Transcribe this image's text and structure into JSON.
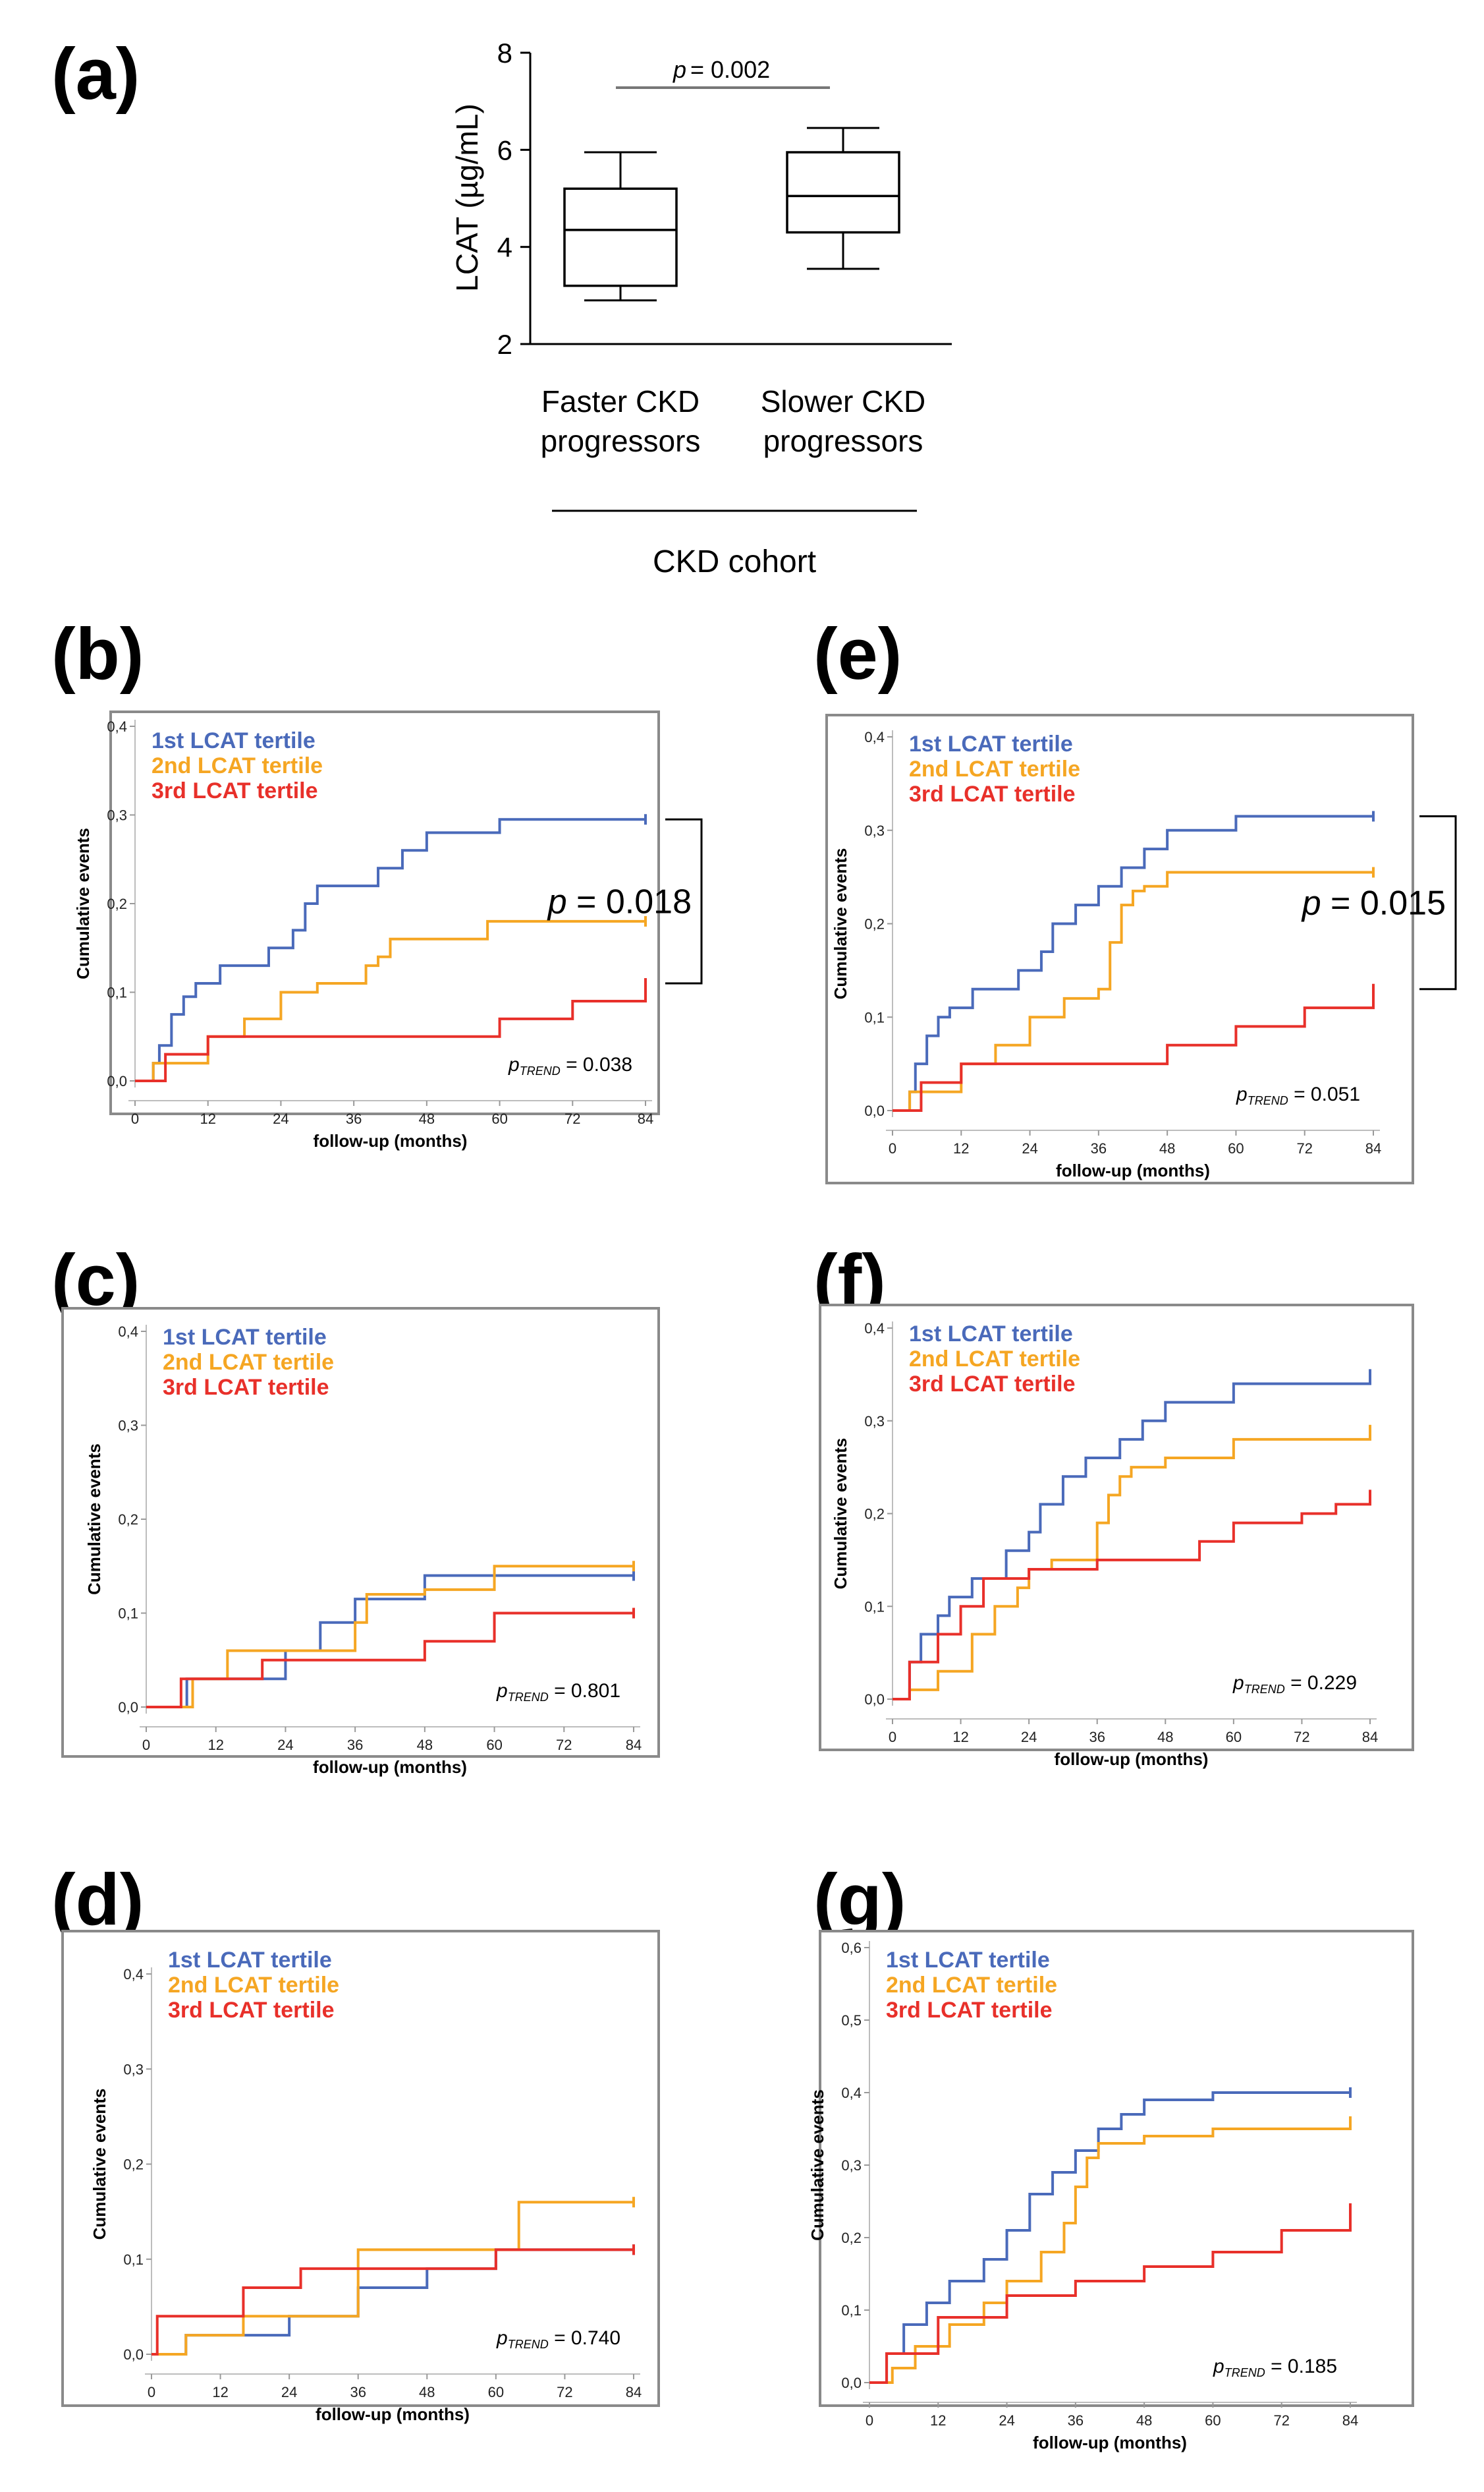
{
  "figure_colors": {
    "tertile_1": "#4a6aba",
    "tertile_2": "#f5a623",
    "tertile_3": "#e8302a"
  },
  "legend_labels": [
    "1st LCAT tertile",
    "2nd LCAT tertile",
    "3rd LCAT tertile"
  ],
  "chart_data": [
    {
      "id": "a",
      "type": "boxplot",
      "panel_label": "(a)",
      "ylabel": "LCAT (µg/mL)",
      "ylim": [
        2,
        8
      ],
      "yticks": [
        "2",
        "4",
        "6",
        "8"
      ],
      "categories": [
        "Faster CKD progressors",
        "Slower CKD progressors"
      ],
      "category_lines": [
        [
          "Faster CKD",
          "progressors"
        ],
        [
          "Slower CKD",
          "progressors"
        ]
      ],
      "boxes": [
        {
          "min": 2.9,
          "q1": 3.2,
          "median": 4.35,
          "q3": 5.2,
          "max": 5.95
        },
        {
          "min": 3.55,
          "q1": 4.3,
          "median": 5.05,
          "q3": 5.95,
          "max": 6.45
        }
      ],
      "comparison": {
        "p_label": "p",
        "p_value": "= 0.002"
      },
      "group_label": "CKD cohort"
    },
    {
      "id": "b",
      "type": "line",
      "panel_label": "(b)",
      "ylabel": "Cumulative events",
      "xlabel": "follow-up (months)",
      "xlim": [
        0,
        84
      ],
      "ylim": [
        0,
        0.4
      ],
      "xticks": [
        "0",
        "12",
        "24",
        "36",
        "48",
        "60",
        "72",
        "84"
      ],
      "yticks": [
        "0,0",
        "0,1",
        "0,2",
        "0,3",
        "0,4"
      ],
      "p_trend": "= 0.038",
      "p_bracket": "p = 0.018",
      "series": [
        {
          "name": "1st LCAT tertile",
          "x": [
            0,
            3,
            4,
            6,
            8,
            10,
            14,
            22,
            26,
            28,
            30,
            32,
            40,
            44,
            48,
            60,
            84
          ],
          "y": [
            0,
            0.02,
            0.04,
            0.075,
            0.095,
            0.11,
            0.13,
            0.15,
            0.17,
            0.2,
            0.22,
            0.22,
            0.24,
            0.26,
            0.28,
            0.295,
            0.295
          ]
        },
        {
          "name": "2nd LCAT tertile",
          "x": [
            0,
            3,
            12,
            18,
            24,
            30,
            38,
            40,
            42,
            44,
            58,
            84
          ],
          "y": [
            0,
            0.02,
            0.05,
            0.07,
            0.1,
            0.11,
            0.13,
            0.14,
            0.16,
            0.16,
            0.18,
            0.18
          ]
        },
        {
          "name": "3rd LCAT tertile",
          "x": [
            0,
            5,
            12,
            16,
            24,
            36,
            48,
            60,
            72,
            84
          ],
          "y": [
            0,
            0.03,
            0.05,
            0.05,
            0.05,
            0.05,
            0.05,
            0.07,
            0.09,
            0.11
          ]
        }
      ]
    },
    {
      "id": "e",
      "type": "line",
      "panel_label": "(e)",
      "ylabel": "Cumulative events",
      "xlabel": "follow-up (months)",
      "xlim": [
        0,
        84
      ],
      "ylim": [
        0,
        0.4
      ],
      "xticks": [
        "0",
        "12",
        "24",
        "36",
        "48",
        "60",
        "72",
        "84"
      ],
      "yticks": [
        "0,0",
        "0,1",
        "0,2",
        "0,3",
        "0,4"
      ],
      "p_trend": "= 0.051",
      "p_bracket": "p = 0.015",
      "series": [
        {
          "name": "1st LCAT tertile",
          "x": [
            0,
            3,
            4,
            6,
            8,
            10,
            14,
            22,
            26,
            28,
            32,
            36,
            40,
            44,
            48,
            60,
            84
          ],
          "y": [
            0,
            0.02,
            0.05,
            0.08,
            0.1,
            0.11,
            0.13,
            0.15,
            0.17,
            0.2,
            0.22,
            0.24,
            0.26,
            0.28,
            0.3,
            0.315,
            0.315
          ]
        },
        {
          "name": "2nd LCAT tertile",
          "x": [
            0,
            3,
            12,
            18,
            24,
            30,
            36,
            38,
            40,
            42,
            44,
            48,
            84
          ],
          "y": [
            0,
            0.02,
            0.05,
            0.07,
            0.1,
            0.12,
            0.13,
            0.18,
            0.22,
            0.235,
            0.24,
            0.255,
            0.255
          ]
        },
        {
          "name": "3rd LCAT tertile",
          "x": [
            0,
            5,
            12,
            16,
            24,
            36,
            48,
            60,
            72,
            84
          ],
          "y": [
            0,
            0.03,
            0.05,
            0.05,
            0.05,
            0.05,
            0.07,
            0.09,
            0.11,
            0.13
          ]
        }
      ]
    },
    {
      "id": "c",
      "type": "line",
      "panel_label": "(c)",
      "ylabel": "Cumulative events",
      "xlabel": "follow-up (months)",
      "xlim": [
        0,
        84
      ],
      "ylim": [
        0,
        0.4
      ],
      "xticks": [
        "0",
        "12",
        "24",
        "36",
        "48",
        "60",
        "72",
        "84"
      ],
      "yticks": [
        "0,0",
        "0,1",
        "0,2",
        "0,3",
        "0,4"
      ],
      "p_trend": "= 0.801",
      "series": [
        {
          "name": "1st LCAT tertile",
          "x": [
            0,
            7,
            12,
            24,
            30,
            36,
            48,
            84
          ],
          "y": [
            0,
            0.03,
            0.03,
            0.06,
            0.09,
            0.115,
            0.14,
            0.14
          ]
        },
        {
          "name": "2nd LCAT tertile",
          "x": [
            0,
            8,
            14,
            24,
            36,
            38,
            48,
            60,
            84
          ],
          "y": [
            0,
            0.03,
            0.06,
            0.06,
            0.09,
            0.12,
            0.125,
            0.15,
            0.15
          ]
        },
        {
          "name": "3rd LCAT tertile",
          "x": [
            0,
            6,
            12,
            20,
            36,
            48,
            60,
            84
          ],
          "y": [
            0,
            0.03,
            0.03,
            0.05,
            0.05,
            0.07,
            0.1,
            0.1
          ]
        }
      ]
    },
    {
      "id": "f",
      "type": "line",
      "panel_label": "(f)",
      "ylabel": "Cumulative events",
      "xlabel": "follow-up (months)",
      "xlim": [
        0,
        84
      ],
      "ylim": [
        0,
        0.4
      ],
      "xticks": [
        "0",
        "12",
        "24",
        "36",
        "48",
        "60",
        "72",
        "84"
      ],
      "yticks": [
        "0,0",
        "0,1",
        "0,2",
        "0,3",
        "0,4"
      ],
      "p_trend": "= 0.229",
      "series": [
        {
          "name": "1st LCAT tertile",
          "x": [
            0,
            3,
            5,
            8,
            10,
            14,
            20,
            24,
            26,
            30,
            34,
            40,
            44,
            48,
            60,
            84
          ],
          "y": [
            0,
            0.04,
            0.07,
            0.09,
            0.11,
            0.13,
            0.16,
            0.18,
            0.21,
            0.24,
            0.26,
            0.28,
            0.3,
            0.32,
            0.34,
            0.35
          ]
        },
        {
          "name": "2nd LCAT tertile",
          "x": [
            0,
            3,
            8,
            14,
            18,
            22,
            24,
            28,
            36,
            38,
            40,
            42,
            48,
            60,
            84
          ],
          "y": [
            0,
            0.01,
            0.03,
            0.07,
            0.1,
            0.12,
            0.14,
            0.15,
            0.19,
            0.22,
            0.24,
            0.25,
            0.26,
            0.28,
            0.29
          ]
        },
        {
          "name": "3rd LCAT tertile",
          "x": [
            0,
            3,
            8,
            12,
            16,
            24,
            36,
            48,
            54,
            60,
            72,
            78,
            84
          ],
          "y": [
            0,
            0.04,
            0.07,
            0.1,
            0.13,
            0.14,
            0.15,
            0.15,
            0.17,
            0.19,
            0.2,
            0.21,
            0.22
          ]
        }
      ]
    },
    {
      "id": "d",
      "type": "line",
      "panel_label": "(d)",
      "ylabel": "Cumulative events",
      "xlabel": "follow-up (months)",
      "xlim": [
        0,
        84
      ],
      "ylim": [
        0,
        0.4
      ],
      "xticks": [
        "0",
        "12",
        "24",
        "36",
        "48",
        "60",
        "72",
        "84"
      ],
      "yticks": [
        "0,0",
        "0,1",
        "0,2",
        "0,3",
        "0,4"
      ],
      "p_trend": "= 0.740",
      "series": [
        {
          "name": "1st LCAT tertile",
          "x": [
            0,
            6,
            12,
            24,
            36,
            48,
            60,
            84
          ],
          "y": [
            0,
            0.02,
            0.02,
            0.04,
            0.07,
            0.09,
            0.11,
            0.11
          ]
        },
        {
          "name": "2nd LCAT tertile",
          "x": [
            0,
            6,
            16,
            24,
            36,
            48,
            60,
            64,
            84
          ],
          "y": [
            0,
            0.02,
            0.04,
            0.04,
            0.11,
            0.11,
            0.11,
            0.16,
            0.16
          ]
        },
        {
          "name": "3rd LCAT tertile",
          "x": [
            0,
            1,
            16,
            26,
            36,
            48,
            60,
            84
          ],
          "y": [
            0,
            0.04,
            0.07,
            0.09,
            0.09,
            0.09,
            0.11,
            0.11
          ]
        }
      ]
    },
    {
      "id": "g",
      "type": "line",
      "panel_label": "(g)",
      "ylabel": "Cumulative events",
      "xlabel": "follow-up (months)",
      "xlim": [
        0,
        84
      ],
      "ylim": [
        0,
        0.6
      ],
      "xticks": [
        "0",
        "12",
        "24",
        "36",
        "48",
        "60",
        "72",
        "84"
      ],
      "yticks": [
        "0,0",
        "0,1",
        "0,2",
        "0,3",
        "0,4",
        "0,5",
        "0,6"
      ],
      "p_trend": "= 0.185",
      "series": [
        {
          "name": "1st LCAT tertile",
          "x": [
            0,
            3,
            6,
            10,
            14,
            20,
            24,
            28,
            32,
            36,
            40,
            44,
            48,
            60,
            84
          ],
          "y": [
            0,
            0.04,
            0.08,
            0.11,
            0.14,
            0.17,
            0.21,
            0.26,
            0.29,
            0.32,
            0.35,
            0.37,
            0.39,
            0.4,
            0.4
          ]
        },
        {
          "name": "2nd LCAT tertile",
          "x": [
            0,
            4,
            8,
            14,
            20,
            24,
            30,
            34,
            36,
            38,
            40,
            48,
            60,
            84
          ],
          "y": [
            0,
            0.02,
            0.05,
            0.08,
            0.11,
            0.14,
            0.18,
            0.22,
            0.27,
            0.31,
            0.33,
            0.34,
            0.35,
            0.36
          ]
        },
        {
          "name": "3rd LCAT tertile",
          "x": [
            0,
            3,
            12,
            24,
            36,
            48,
            60,
            72,
            84
          ],
          "y": [
            0,
            0.04,
            0.09,
            0.12,
            0.14,
            0.16,
            0.18,
            0.21,
            0.24
          ]
        }
      ]
    }
  ]
}
